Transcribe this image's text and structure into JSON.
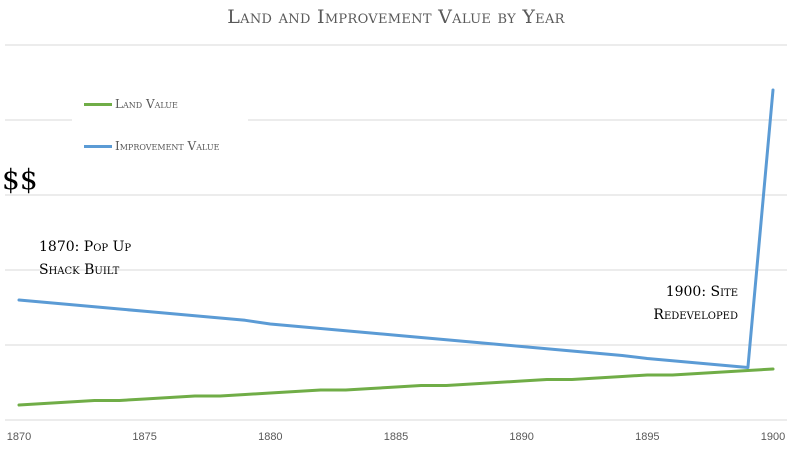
{
  "chart_data": {
    "type": "line",
    "title": "Land and Improvement Value by Year",
    "xlabel": "",
    "ylabel": "$$",
    "x": [
      1870,
      1871,
      1872,
      1873,
      1874,
      1875,
      1876,
      1877,
      1878,
      1879,
      1880,
      1881,
      1882,
      1883,
      1884,
      1885,
      1886,
      1887,
      1888,
      1889,
      1890,
      1891,
      1892,
      1893,
      1894,
      1895,
      1896,
      1897,
      1898,
      1899,
      1900
    ],
    "xticks": [
      1870,
      1875,
      1880,
      1885,
      1890,
      1895,
      1900
    ],
    "xlim": [
      1870,
      1900
    ],
    "ylim": [
      0,
      500
    ],
    "grid": true,
    "legend_position": "top-left",
    "series": [
      {
        "name": "Land Value",
        "color": "#70ad47",
        "values": [
          20,
          22,
          24,
          26,
          26,
          28,
          30,
          32,
          32,
          34,
          36,
          38,
          40,
          40,
          42,
          44,
          46,
          46,
          48,
          50,
          52,
          54,
          54,
          56,
          58,
          60,
          60,
          62,
          64,
          66,
          68
        ]
      },
      {
        "name": "Improvement Value",
        "color": "#5b9bd5",
        "values": [
          160,
          157,
          154,
          151,
          148,
          145,
          142,
          139,
          136,
          133,
          128,
          125,
          122,
          119,
          116,
          113,
          110,
          107,
          104,
          101,
          98,
          95,
          92,
          89,
          86,
          82,
          79,
          76,
          73,
          70,
          440
        ]
      }
    ],
    "annotations": [
      {
        "x": 1870,
        "lines": [
          "1870: Pop Up",
          "Shack Built"
        ]
      },
      {
        "x": 1900,
        "lines": [
          "1900: Site",
          "Redeveloped"
        ]
      }
    ]
  }
}
